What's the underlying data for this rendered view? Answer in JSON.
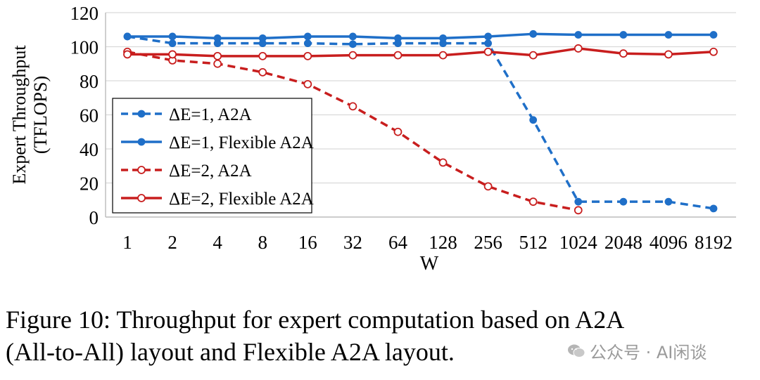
{
  "chart_data": {
    "type": "line",
    "xlabel": "W",
    "ylabel": [
      "Expert Throughput",
      "(TFLOPS)"
    ],
    "categories": [
      "1",
      "2",
      "4",
      "8",
      "16",
      "32",
      "64",
      "128",
      "256",
      "512",
      "1024",
      "2048",
      "4096",
      "8192"
    ],
    "ylim": [
      0,
      120
    ],
    "yticks": [
      0,
      20,
      40,
      60,
      80,
      100,
      120
    ],
    "grid": true,
    "legend_position": "left",
    "series": [
      {
        "name": "ΔE=1, A2A",
        "color": "#1f6fc8",
        "dash": true,
        "filled": true,
        "values": [
          106,
          102,
          102,
          102,
          102,
          101.5,
          102,
          102,
          102,
          57,
          9,
          9,
          9,
          5
        ]
      },
      {
        "name": "ΔE=1, Flexible A2A",
        "color": "#1f6fc8",
        "dash": false,
        "filled": true,
        "values": [
          106,
          106,
          105,
          105,
          106,
          106,
          105,
          105,
          106,
          107.5,
          107,
          107,
          107,
          107
        ]
      },
      {
        "name": "ΔE=2, A2A",
        "color": "#c81e1e",
        "dash": true,
        "filled": false,
        "values": [
          97,
          92,
          90,
          85,
          78,
          65,
          50,
          32,
          18,
          9,
          4,
          null,
          null,
          null
        ]
      },
      {
        "name": "ΔE=2, Flexible A2A",
        "color": "#c81e1e",
        "dash": false,
        "filled": false,
        "values": [
          95.5,
          95.5,
          94.5,
          94.5,
          94.5,
          95,
          95,
          95,
          97,
          95,
          99,
          96,
          95.5,
          97
        ]
      }
    ]
  },
  "caption": {
    "line1": "Figure 10: Throughput for expert computation based on A2A",
    "line2": "(All-to-All) layout and Flexible A2A layout."
  },
  "watermark": {
    "text": "公众号 · AI闲谈",
    "icon": "wechat-icon"
  }
}
